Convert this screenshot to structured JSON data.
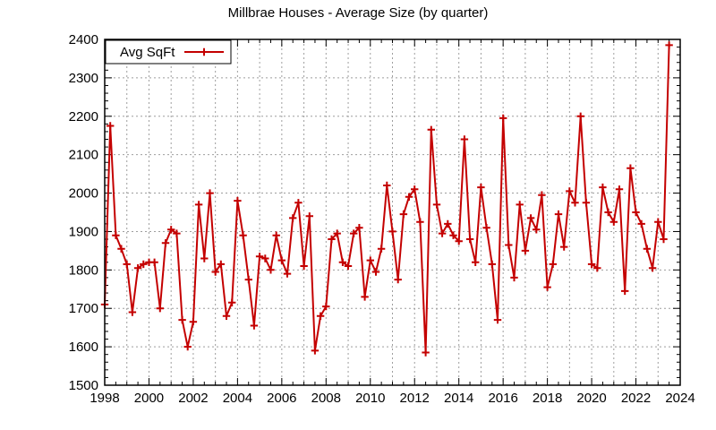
{
  "title": "Millbrae Houses - Average Size (by quarter)",
  "legend": {
    "label": "Avg SqFt",
    "position": "top-left"
  },
  "colors": {
    "series": "#c40000",
    "grid": "#9e9e9e",
    "text": "#000000",
    "frame": "#000000",
    "background": "#ffffff"
  },
  "chart_data": {
    "type": "line",
    "title": "Millbrae Houses - Average Size (by quarter)",
    "series_name": "Avg SqFt",
    "marker": "plus",
    "grid": "dashed, vertical every year, horizontal every 100",
    "legend_position": "top-left",
    "xlabel": "",
    "ylabel": "",
    "xlim": [
      1998,
      2024
    ],
    "ylim": [
      1500,
      2400
    ],
    "x_tick_labels": [
      "1998",
      "2000",
      "2002",
      "2004",
      "2006",
      "2008",
      "2010",
      "2012",
      "2014",
      "2016",
      "2018",
      "2020",
      "2022",
      "2024"
    ],
    "y_tick_labels": [
      "1500",
      "1600",
      "1700",
      "1800",
      "1900",
      "2000",
      "2100",
      "2200",
      "2300",
      "2400"
    ],
    "x_start": 1998.0,
    "x_step": 0.25,
    "x_unit": "quarter",
    "values": [
      1710,
      2175,
      1890,
      1855,
      1815,
      1690,
      1805,
      1815,
      1820,
      1820,
      1700,
      1870,
      1905,
      1895,
      1670,
      1600,
      1665,
      1970,
      1830,
      2000,
      1795,
      1815,
      1680,
      1715,
      1980,
      1890,
      1775,
      1655,
      1835,
      1830,
      1800,
      1890,
      1825,
      1790,
      1935,
      1975,
      1810,
      1940,
      1590,
      1680,
      1705,
      1880,
      1895,
      1820,
      1810,
      1895,
      1910,
      1730,
      1825,
      1795,
      1855,
      2020,
      1900,
      1775,
      1945,
      1990,
      2010,
      1925,
      1585,
      2165,
      1970,
      1895,
      1920,
      1890,
      1875,
      2140,
      1880,
      1820,
      2015,
      1910,
      1815,
      1670,
      2195,
      1865,
      1780,
      1970,
      1850,
      1935,
      1905,
      1995,
      1755,
      1815,
      1945,
      1860,
      2005,
      1975,
      2200,
      1975,
      1815,
      1805,
      2015,
      1950,
      1925,
      2010,
      1745,
      2065,
      1950,
      1920,
      1855,
      1805,
      1925,
      1880,
      2385
    ]
  }
}
